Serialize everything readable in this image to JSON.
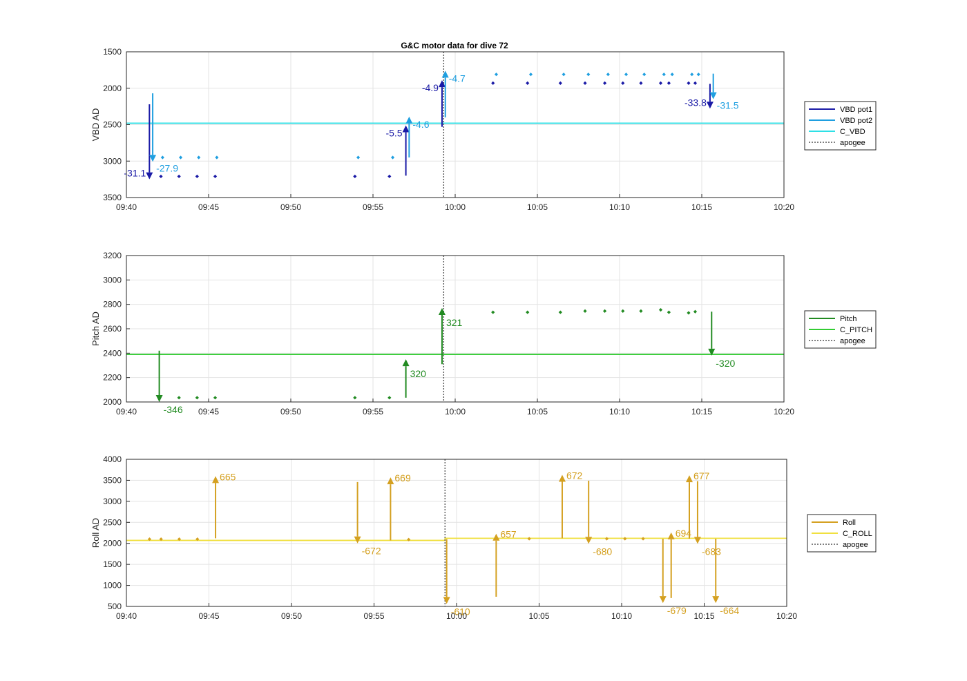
{
  "figure": {
    "title": "G&C motor data for dive 72"
  },
  "chart_data": [
    {
      "type": "line",
      "ylabel": "VBD AD",
      "ylim": [
        1500,
        3500
      ],
      "y_reversed": true,
      "yticks": [
        1500,
        2000,
        2500,
        3000,
        3500
      ],
      "xlim": [
        "09:40",
        "10:20"
      ],
      "xticks": [
        "09:40",
        "09:45",
        "09:50",
        "09:55",
        "10:00",
        "10:05",
        "10:10",
        "10:15",
        "10:20"
      ],
      "grid": true,
      "legend_position": "right",
      "apogee": "09:59.3",
      "legend": [
        {
          "label": "VBD pot1",
          "color": "#1a1aa6",
          "style": "solid"
        },
        {
          "label": "VBD pot2",
          "color": "#1f9fe0",
          "style": "solid"
        },
        {
          "label": "C_VBD",
          "color": "#2ee0e6",
          "style": "solid"
        },
        {
          "label": "apogee",
          "color": "#555555",
          "style": "dashed"
        }
      ],
      "lines": [
        {
          "name": "C_VBD",
          "color": "#2ee0e6",
          "x": [
            "09:40",
            "10:20"
          ],
          "y": [
            2480,
            2480
          ]
        }
      ],
      "points": [
        {
          "name": "VBD pot1",
          "color": "#1a1aa6",
          "x": [
            "09:42.1",
            "09:43.2",
            "09:44.3",
            "09:45.4",
            "09:53.9",
            "09:56",
            "10:02.3",
            "10:04.4",
            "10:06.4",
            "10:07.9",
            "10:09.1",
            "10:10.2",
            "10:11.3",
            "10:12.5",
            "10:13",
            "10:14.2",
            "10:14.6"
          ],
          "y": [
            3210,
            3210,
            3210,
            3210,
            3210,
            3210,
            1930,
            1930,
            1930,
            1930,
            1930,
            1930,
            1930,
            1930,
            1930,
            1930,
            1930
          ]
        },
        {
          "name": "VBD pot2",
          "color": "#1f9fe0",
          "x": [
            "09:42.2",
            "09:43.3",
            "09:44.4",
            "09:45.5",
            "09:54.1",
            "09:56.2",
            "10:02.5",
            "10:04.6",
            "10:06.6",
            "10:08.1",
            "10:09.3",
            "10:10.4",
            "10:11.5",
            "10:12.7",
            "10:13.2",
            "10:14.4",
            "10:14.8"
          ],
          "y": [
            2950,
            2950,
            2950,
            2950,
            2950,
            2950,
            1810,
            1810,
            1810,
            1810,
            1810,
            1810,
            1810,
            1810,
            1810,
            1810,
            1810
          ]
        }
      ],
      "arrows": [
        {
          "series": "VBD pot1",
          "color": "#1a1aa6",
          "x": "09:41.4",
          "y0": 2220,
          "y1": 3250,
          "label": "-31.1"
        },
        {
          "series": "VBD pot2",
          "color": "#1f9fe0",
          "x": "09:41.6",
          "y0": 2070,
          "y1": 3010,
          "label": "-27.9"
        },
        {
          "series": "VBD pot1",
          "color": "#1a1aa6",
          "x": "09:57",
          "y0": 3200,
          "y1": 2510,
          "label": "-5.5"
        },
        {
          "series": "VBD pot2",
          "color": "#1f9fe0",
          "x": "09:57.2",
          "y0": 2950,
          "y1": 2390,
          "label": "-4.6"
        },
        {
          "series": "VBD pot1",
          "color": "#1a1aa6",
          "x": "09:59.2",
          "y0": 2530,
          "y1": 1890,
          "label": "-4.9"
        },
        {
          "series": "VBD pot2",
          "color": "#1f9fe0",
          "x": "09:59.4",
          "y0": 2400,
          "y1": 1760,
          "label": "-4.7"
        },
        {
          "series": "VBD pot1",
          "color": "#1a1aa6",
          "x": "10:15.5",
          "y0": 1940,
          "y1": 2280,
          "label": "-33.8"
        },
        {
          "series": "VBD pot2",
          "color": "#1f9fe0",
          "x": "10:15.7",
          "y0": 1800,
          "y1": 2150,
          "label": "-31.5"
        }
      ]
    },
    {
      "type": "line",
      "ylabel": "Pitch AD",
      "ylim": [
        2000,
        3200
      ],
      "yticks": [
        2000,
        2200,
        2400,
        2600,
        2800,
        3000,
        3200
      ],
      "xlim": [
        "09:40",
        "10:20"
      ],
      "xticks": [
        "09:40",
        "09:45",
        "09:50",
        "09:55",
        "10:00",
        "10:05",
        "10:10",
        "10:15",
        "10:20"
      ],
      "grid": true,
      "legend_position": "right",
      "apogee": "09:59.3",
      "legend": [
        {
          "label": "Pitch",
          "color": "#228b22",
          "style": "solid"
        },
        {
          "label": "C_PITCH",
          "color": "#33cc33",
          "style": "solid"
        },
        {
          "label": "apogee",
          "color": "#555555",
          "style": "dashed"
        }
      ],
      "lines": [
        {
          "name": "C_PITCH",
          "color": "#33cc33",
          "x": [
            "09:40",
            "10:20"
          ],
          "y": [
            2390,
            2390
          ]
        }
      ],
      "points": [
        {
          "name": "Pitch",
          "color": "#228b22",
          "x": [
            "09:43.2",
            "09:44.3",
            "09:45.4",
            "09:53.9",
            "09:56",
            "10:02.3",
            "10:04.4",
            "10:06.4",
            "10:07.9",
            "10:09.1",
            "10:10.2",
            "10:11.3",
            "10:12.5",
            "10:13",
            "10:14.2",
            "10:14.6"
          ],
          "y": [
            2035,
            2035,
            2035,
            2035,
            2035,
            2735,
            2735,
            2735,
            2745,
            2745,
            2745,
            2745,
            2755,
            2735,
            2730,
            2740
          ]
        }
      ],
      "arrows": [
        {
          "series": "Pitch",
          "color": "#228b22",
          "x": "09:42",
          "y0": 2420,
          "y1": 2000,
          "label": "-346"
        },
        {
          "series": "Pitch",
          "color": "#228b22",
          "x": "09:57",
          "y0": 2035,
          "y1": 2350,
          "label": "320"
        },
        {
          "series": "Pitch",
          "color": "#228b22",
          "x": "09:59.2",
          "y0": 2310,
          "y1": 2770,
          "label": "321"
        },
        {
          "series": "Pitch",
          "color": "#228b22",
          "x": "10:15.6",
          "y0": 2740,
          "y1": 2380,
          "label": "-320"
        }
      ]
    },
    {
      "type": "line",
      "ylabel": "Roll AD",
      "ylim": [
        500,
        4000
      ],
      "yticks": [
        500,
        1000,
        1500,
        2000,
        2500,
        3000,
        3500,
        4000
      ],
      "xlim": [
        "09:40",
        "10:20"
      ],
      "xticks": [
        "09:40",
        "09:45",
        "09:50",
        "09:55",
        "10:00",
        "10:05",
        "10:10",
        "10:15",
        "10:20"
      ],
      "grid": true,
      "legend_position": "right",
      "apogee": "09:59.3",
      "legend": [
        {
          "label": "Roll",
          "color": "#d4a020",
          "style": "solid"
        },
        {
          "label": "C_ROLL",
          "color": "#f0e040",
          "style": "solid"
        },
        {
          "label": "apogee",
          "color": "#555555",
          "style": "dashed"
        }
      ],
      "lines": [
        {
          "name": "C_ROLL",
          "color": "#f0e040",
          "x": [
            "09:40",
            "09:59.3",
            "09:59.3",
            "10:20"
          ],
          "y": [
            2070,
            2070,
            2120,
            2120
          ]
        }
      ],
      "points": [
        {
          "name": "Roll",
          "color": "#d4a020",
          "x": [
            "09:41.4",
            "09:42.1",
            "09:43.2",
            "09:44.3",
            "09:57.1",
            "10:04.4",
            "10:09.1",
            "10:10.2",
            "10:11.3"
          ],
          "y": [
            2100,
            2100,
            2100,
            2100,
            2090,
            2110,
            2110,
            2110,
            2110
          ]
        }
      ],
      "arrows": [
        {
          "series": "Roll",
          "color": "#d4a020",
          "x": "09:45.4",
          "y0": 2120,
          "y1": 3600,
          "label": "665"
        },
        {
          "series": "Roll",
          "color": "#d4a020",
          "x": "09:54",
          "y0": 3460,
          "y1": 2000,
          "label": "-672"
        },
        {
          "series": "Roll",
          "color": "#d4a020",
          "x": "09:56",
          "y0": 2070,
          "y1": 3570,
          "label": "669"
        },
        {
          "series": "Roll",
          "color": "#d4a020",
          "x": "09:59.4",
          "y0": 2100,
          "y1": 560,
          "label": "-610"
        },
        {
          "series": "Roll",
          "color": "#d4a020",
          "x": "10:02.4",
          "y0": 730,
          "y1": 2230,
          "label": "657"
        },
        {
          "series": "Roll",
          "color": "#d4a020",
          "x": "10:06.4",
          "y0": 2120,
          "y1": 3630,
          "label": "672"
        },
        {
          "series": "Roll",
          "color": "#d4a020",
          "x": "10:08",
          "y0": 3490,
          "y1": 1990,
          "label": "-680"
        },
        {
          "series": "Roll",
          "color": "#d4a020",
          "x": "10:12.5",
          "y0": 2110,
          "y1": 580,
          "label": "-679"
        },
        {
          "series": "Roll",
          "color": "#d4a020",
          "x": "10:13",
          "y0": 700,
          "y1": 2260,
          "label": "694"
        },
        {
          "series": "Roll",
          "color": "#d4a020",
          "x": "10:14.1",
          "y0": 2110,
          "y1": 3620,
          "label": "677"
        },
        {
          "series": "Roll",
          "color": "#d4a020",
          "x": "10:14.6",
          "y0": 3480,
          "y1": 1990,
          "label": "-683"
        },
        {
          "series": "Roll",
          "color": "#d4a020",
          "x": "10:15.7",
          "y0": 2110,
          "y1": 580,
          "label": "-664"
        }
      ]
    }
  ]
}
